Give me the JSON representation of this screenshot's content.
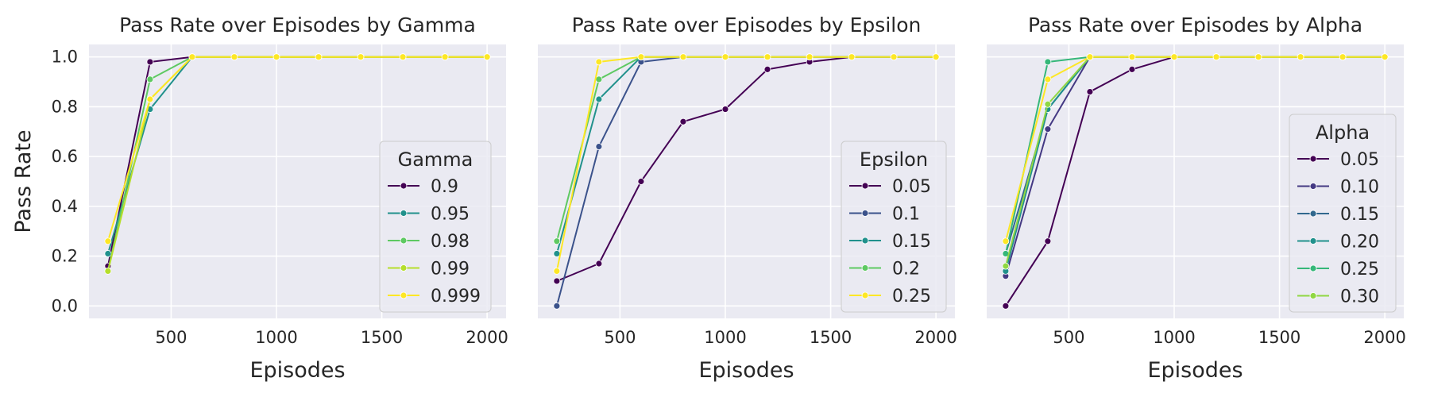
{
  "chart_data": [
    {
      "type": "line",
      "title": "Pass Rate over Episodes by Gamma",
      "xlabel": "Episodes",
      "ylabel": "Pass Rate",
      "xlim": [
        110,
        2090
      ],
      "ylim": [
        -0.05,
        1.05
      ],
      "xticks": [
        500,
        1000,
        1500,
        2000
      ],
      "yticks": [
        0.0,
        0.2,
        0.4,
        0.6,
        0.8,
        1.0
      ],
      "xtick_labels": [
        "500",
        "1000",
        "1500",
        "2000"
      ],
      "ytick_labels": [
        "0.0",
        "0.2",
        "0.4",
        "0.6",
        "0.8",
        "1.0"
      ],
      "grid": true,
      "legend": {
        "title": "Gamma",
        "placement": "center-right"
      },
      "x": [
        200,
        400,
        600,
        800,
        1000,
        1200,
        1400,
        1600,
        1800,
        2000
      ],
      "series": [
        {
          "name": "0.9",
          "color": "#440154",
          "values": [
            0.16,
            0.98,
            1.0,
            1.0,
            1.0,
            1.0,
            1.0,
            1.0,
            1.0,
            1.0
          ]
        },
        {
          "name": "0.95",
          "color": "#21918c",
          "values": [
            0.21,
            0.79,
            1.0,
            1.0,
            1.0,
            1.0,
            1.0,
            1.0,
            1.0,
            1.0
          ]
        },
        {
          "name": "0.98",
          "color": "#5ec962",
          "values": [
            0.14,
            0.91,
            1.0,
            1.0,
            1.0,
            1.0,
            1.0,
            1.0,
            1.0,
            1.0
          ]
        },
        {
          "name": "0.99",
          "color": "#b5de2b",
          "values": [
            0.14,
            0.83,
            1.0,
            1.0,
            1.0,
            1.0,
            1.0,
            1.0,
            1.0,
            1.0
          ]
        },
        {
          "name": "0.999",
          "color": "#fde725",
          "values": [
            0.26,
            0.83,
            1.0,
            1.0,
            1.0,
            1.0,
            1.0,
            1.0,
            1.0,
            1.0
          ]
        }
      ]
    },
    {
      "type": "line",
      "title": "Pass Rate over Episodes by Epsilon",
      "xlabel": "Episodes",
      "ylabel": "",
      "xlim": [
        110,
        2090
      ],
      "ylim": [
        -0.05,
        1.05
      ],
      "xticks": [
        500,
        1000,
        1500,
        2000
      ],
      "yticks": [
        0.0,
        0.2,
        0.4,
        0.6,
        0.8,
        1.0
      ],
      "xtick_labels": [
        "500",
        "1000",
        "1500",
        "2000"
      ],
      "ytick_labels": [],
      "grid": true,
      "legend": {
        "title": "Epsilon",
        "placement": "lower-right"
      },
      "x": [
        200,
        400,
        600,
        800,
        1000,
        1200,
        1400,
        1600,
        1800,
        2000
      ],
      "series": [
        {
          "name": "0.05",
          "color": "#440154",
          "values": [
            0.1,
            0.17,
            0.5,
            0.74,
            0.79,
            0.95,
            0.98,
            1.0,
            1.0,
            1.0
          ]
        },
        {
          "name": "0.1",
          "color": "#3b528b",
          "values": [
            0.0,
            0.64,
            0.98,
            1.0,
            1.0,
            1.0,
            1.0,
            1.0,
            1.0,
            1.0
          ]
        },
        {
          "name": "0.15",
          "color": "#21918c",
          "values": [
            0.21,
            0.83,
            1.0,
            1.0,
            1.0,
            1.0,
            1.0,
            1.0,
            1.0,
            1.0
          ]
        },
        {
          "name": "0.2",
          "color": "#5ec962",
          "values": [
            0.26,
            0.91,
            1.0,
            1.0,
            1.0,
            1.0,
            1.0,
            1.0,
            1.0,
            1.0
          ]
        },
        {
          "name": "0.25",
          "color": "#fde725",
          "values": [
            0.14,
            0.98,
            1.0,
            1.0,
            1.0,
            1.0,
            1.0,
            1.0,
            1.0,
            1.0
          ]
        }
      ]
    },
    {
      "type": "line",
      "title": "Pass Rate over Episodes by Alpha",
      "xlabel": "Episodes",
      "ylabel": "",
      "xlim": [
        110,
        2090
      ],
      "ylim": [
        -0.05,
        1.05
      ],
      "xticks": [
        500,
        1000,
        1500,
        2000
      ],
      "yticks": [
        0.0,
        0.2,
        0.4,
        0.6,
        0.8,
        1.0
      ],
      "xtick_labels": [
        "500",
        "1000",
        "1500",
        "2000"
      ],
      "ytick_labels": [],
      "grid": true,
      "legend": {
        "title": "Alpha",
        "placement": "center-right"
      },
      "x": [
        200,
        400,
        600,
        800,
        1000,
        1200,
        1400,
        1600,
        1800,
        2000
      ],
      "series": [
        {
          "name": "0.05",
          "color": "#440154",
          "values": [
            0.0,
            0.26,
            0.86,
            0.95,
            1.0,
            1.0,
            1.0,
            1.0,
            1.0,
            1.0
          ]
        },
        {
          "name": "0.10",
          "color": "#443983",
          "values": [
            0.12,
            0.71,
            1.0,
            1.0,
            1.0,
            1.0,
            1.0,
            1.0,
            1.0,
            1.0
          ]
        },
        {
          "name": "0.15",
          "color": "#31688e",
          "values": [
            0.21,
            0.79,
            1.0,
            1.0,
            1.0,
            1.0,
            1.0,
            1.0,
            1.0,
            1.0
          ]
        },
        {
          "name": "0.20",
          "color": "#21918c",
          "values": [
            0.14,
            0.79,
            1.0,
            1.0,
            1.0,
            1.0,
            1.0,
            1.0,
            1.0,
            1.0
          ]
        },
        {
          "name": "0.25",
          "color": "#35b779",
          "values": [
            0.21,
            0.98,
            1.0,
            1.0,
            1.0,
            1.0,
            1.0,
            1.0,
            1.0,
            1.0
          ]
        },
        {
          "name": "0.30",
          "color": "#90d743",
          "values": [
            0.16,
            0.81,
            1.0,
            1.0,
            1.0,
            1.0,
            1.0,
            1.0,
            1.0,
            1.0
          ]
        },
        {
          "name": "",
          "color": "#fde725",
          "values": [
            0.26,
            0.91,
            1.0,
            1.0,
            1.0,
            1.0,
            1.0,
            1.0,
            1.0,
            1.0
          ]
        }
      ]
    }
  ]
}
